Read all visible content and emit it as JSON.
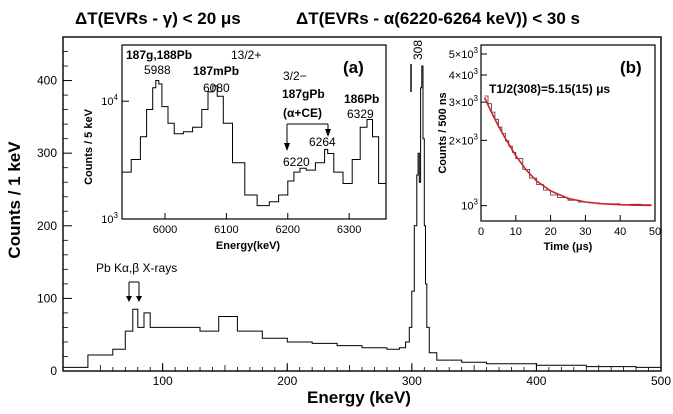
{
  "colors": {
    "line": "#000000",
    "fit": "#d4202a",
    "background": "#ffffff"
  },
  "header": {
    "left": "ΔT(EVRs - γ) < 20 μs",
    "right": "ΔT(EVRs - α(6220-6264 keV)) < 30 s"
  },
  "annotations": {
    "peak_308": "308",
    "xrays": "Pb Kα,β X-rays"
  },
  "inset_a": {
    "label": "(a)",
    "lbl_187g188": "187g,188Pb",
    "lbl_5988": "5988",
    "lbl_187m": "187mPb",
    "lbl_6080": "6080",
    "lbl_spin132": "13/2+",
    "lbl_spin32": "3/2−",
    "lbl_187gpb": "187gPb",
    "lbl_ace": "(α+CE)",
    "lbl_6220": "6220",
    "lbl_6264": "6264",
    "lbl_186": "186Pb",
    "lbl_6329": "6329"
  },
  "inset_b": {
    "label": "(b)",
    "fit_label": "T1/2(308)=5.15(15) μs"
  },
  "chart_data": [
    {
      "type": "line",
      "title": "",
      "xlabel": "Energy (keV)",
      "ylabel": "Counts / 1 keV",
      "xlim": [
        20,
        500
      ],
      "ylim": [
        0,
        460
      ],
      "xticks": [
        100,
        200,
        300,
        400,
        500
      ],
      "yticks": [
        0,
        100,
        200,
        300,
        400
      ],
      "grid": false,
      "series": [
        {
          "x": [
            20,
            40,
            60,
            70,
            76,
            80,
            85,
            90,
            110,
            130,
            145,
            160,
            180,
            200,
            220,
            240,
            260,
            280,
            290,
            295,
            298,
            300,
            302,
            304,
            305,
            306,
            307,
            308,
            309,
            310,
            311,
            312,
            314,
            320,
            340,
            360,
            380,
            400,
            420,
            440,
            460,
            480,
            500
          ],
          "y": [
            5,
            22,
            30,
            55,
            85,
            60,
            80,
            60,
            60,
            55,
            75,
            55,
            45,
            40,
            38,
            35,
            32,
            30,
            32,
            40,
            60,
            110,
            200,
            270,
            300,
            260,
            390,
            420,
            320,
            200,
            120,
            60,
            25,
            15,
            12,
            10,
            10,
            8,
            8,
            6,
            6,
            5,
            5
          ]
        }
      ]
    },
    {
      "type": "line",
      "title": "",
      "xlabel": "Energy(keV)",
      "ylabel": "Counts / 5 keV",
      "xlim": [
        5930,
        6360
      ],
      "ylim": [
        1000,
        30000
      ],
      "yscale": "log",
      "xticks": [
        6000,
        6100,
        6200,
        6300
      ],
      "yticks": [
        1000,
        10000
      ],
      "ytick_labels": [
        "10^3",
        "10^4"
      ],
      "grid": false,
      "series": [
        {
          "x": [
            5930,
            5945,
            5960,
            5970,
            5980,
            5985,
            5990,
            5995,
            6005,
            6015,
            6030,
            6045,
            6060,
            6070,
            6078,
            6085,
            6095,
            6110,
            6130,
            6150,
            6170,
            6185,
            6200,
            6210,
            6220,
            6230,
            6245,
            6260,
            6265,
            6275,
            6290,
            6305,
            6318,
            6329,
            6338,
            6348,
            6360
          ],
          "y": [
            2500,
            3200,
            5000,
            8500,
            13000,
            15000,
            14000,
            9000,
            6500,
            5300,
            5500,
            6000,
            8500,
            12000,
            13500,
            11000,
            6500,
            3000,
            1600,
            1300,
            1400,
            1600,
            2100,
            2500,
            2700,
            2600,
            3000,
            3900,
            3600,
            2500,
            2000,
            3200,
            6000,
            7000,
            5000,
            2000,
            1200
          ]
        }
      ]
    },
    {
      "type": "line",
      "title": "",
      "xlabel": "Time (μs)",
      "ylabel": "Counts / 500 ns",
      "xlim": [
        0,
        50
      ],
      "ylim": [
        850,
        5500
      ],
      "yscale": "log",
      "xticks": [
        0,
        10,
        20,
        30,
        40,
        50
      ],
      "yticks": [
        1000,
        2000,
        3000,
        4000,
        5000
      ],
      "ytick_labels": [
        "10^3",
        "2×10^3",
        "3×10^3",
        "4×10^3",
        "5×10^3"
      ],
      "grid": false,
      "series": [
        {
          "name": "data",
          "x": [
            1,
            2,
            3,
            4,
            5,
            6,
            7,
            8,
            9,
            10,
            12,
            14,
            16,
            18,
            20,
            22,
            25,
            28,
            31,
            34,
            37,
            40,
            43,
            46,
            49
          ],
          "y": [
            3200,
            2950,
            2700,
            2500,
            2300,
            2150,
            1990,
            1880,
            1760,
            1650,
            1470,
            1340,
            1250,
            1180,
            1120,
            1090,
            1060,
            1040,
            1030,
            1020,
            1020,
            1010,
            1015,
            1010,
            1010
          ]
        },
        {
          "name": "fit",
          "x": [
            1,
            3,
            5,
            7,
            10,
            13,
            16,
            20,
            25,
            30,
            35,
            40,
            45,
            49
          ],
          "y": [
            3150,
            2700,
            2330,
            2040,
            1700,
            1460,
            1300,
            1170,
            1080,
            1040,
            1020,
            1010,
            1005,
            1003
          ]
        }
      ]
    }
  ]
}
